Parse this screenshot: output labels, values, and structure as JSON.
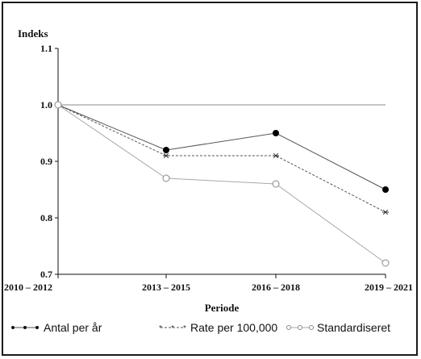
{
  "chart_data": {
    "type": "line",
    "ylabel": "Indeks",
    "xlabel": "Periode",
    "categories": [
      "2010 – 2012",
      "2013 – 2015",
      "2016 – 2018",
      "2019 – 2021"
    ],
    "ylim": [
      0.7,
      1.1
    ],
    "yticks": [
      "0.7",
      "0.8",
      "0.9",
      "1.0",
      "1.1"
    ],
    "reference_line": 1.0,
    "legend_position": "bottom",
    "series": [
      {
        "name": "Antal per år",
        "values": [
          1.0,
          0.92,
          0.95,
          0.85
        ],
        "marker": "filled-circle",
        "line": "solid",
        "color": "#555555"
      },
      {
        "name": "Rate per 100,000",
        "values": [
          1.0,
          0.91,
          0.91,
          0.81
        ],
        "marker": "star",
        "line": "dashed",
        "color": "#555555"
      },
      {
        "name": "Standardiseret",
        "values": [
          1.0,
          0.87,
          0.86,
          0.72
        ],
        "marker": "open-circle",
        "line": "solid",
        "color": "#a8a8a8"
      }
    ]
  }
}
